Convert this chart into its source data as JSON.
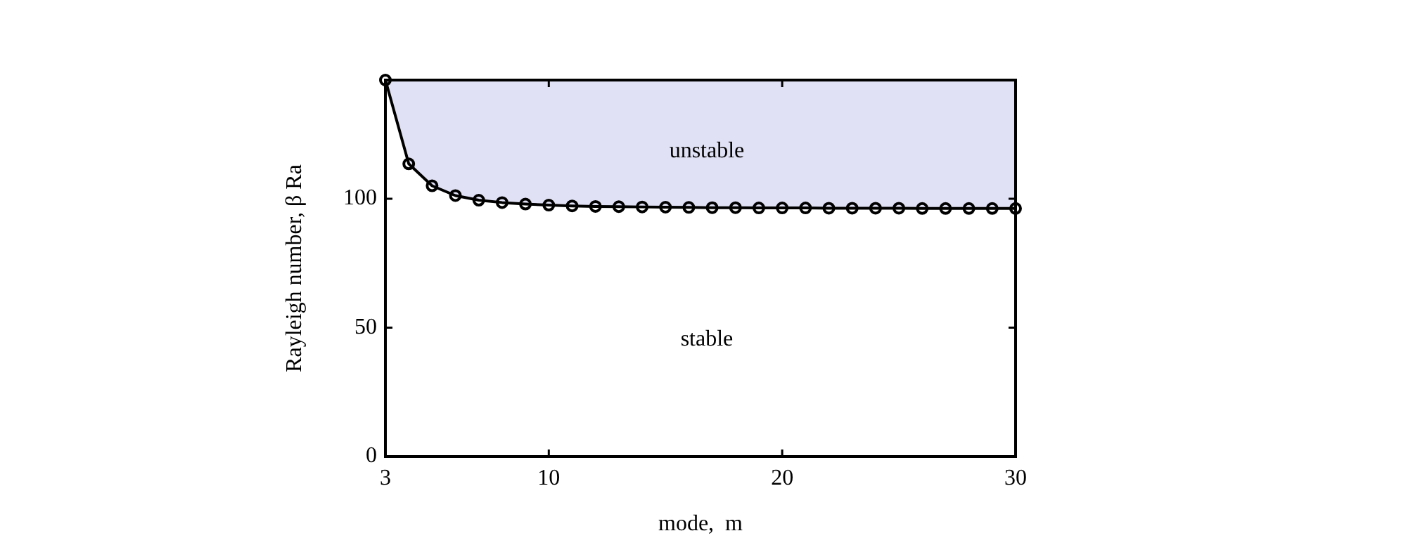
{
  "chart_data": {
    "type": "line",
    "xlabel": "mode,  m",
    "ylabel": "Rayleigh number, β Ra",
    "x": [
      3,
      4,
      5,
      6,
      7,
      8,
      9,
      10,
      11,
      12,
      13,
      14,
      15,
      16,
      17,
      18,
      19,
      20,
      21,
      22,
      23,
      24,
      25,
      26,
      27,
      28,
      29,
      30
    ],
    "series": [
      {
        "color": "#000000",
        "values": [
          146,
          113.5,
          105,
          101.2,
          99.4,
          98.5,
          97.9,
          97.5,
          97.2,
          97,
          96.9,
          96.8,
          96.7,
          96.6,
          96.5,
          96.5,
          96.4,
          96.4,
          96.4,
          96.3,
          96.3,
          96.3,
          96.3,
          96.2,
          96.2,
          96.2,
          96.2,
          96.2
        ]
      }
    ],
    "annotations": [
      "unstable",
      "stable"
    ],
    "xlim": [
      3,
      30
    ],
    "xticks": [
      3,
      10,
      20,
      30
    ],
    "ylim": [
      0,
      146
    ],
    "yticks": [
      0,
      50,
      100
    ],
    "grid": false,
    "legend": false,
    "marker": "circle",
    "line_style": "solid"
  }
}
